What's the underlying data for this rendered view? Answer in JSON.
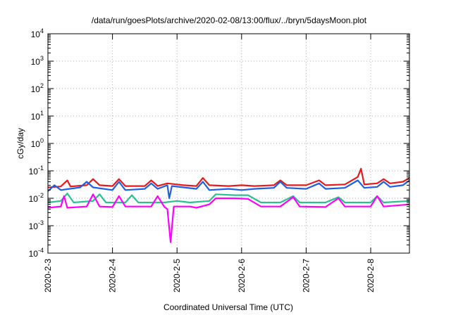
{
  "chart_data": {
    "type": "line",
    "title": "/data/run/goesPlots/archive/2020-02-08/13:00/flux/../bryn/5daysMoon.plot",
    "xlabel": "Coordinated Universal Time (UTC)",
    "ylabel": "cGy/day",
    "yscale": "log",
    "ylim": [
      0.0001,
      10000
    ],
    "xlim": [
      0,
      5.6
    ],
    "grid": true,
    "x_tick_values": [
      0,
      1,
      2,
      3,
      4,
      5
    ],
    "x_tick_labels": [
      "2020-2-3",
      "2020-2-4",
      "2020-2-5",
      "2020-2-6",
      "2020-2-7",
      "2020-2-8"
    ],
    "y_ticks": [
      {
        "value": 0.0001,
        "base": "10",
        "exp": "-4"
      },
      {
        "value": 0.001,
        "base": "10",
        "exp": "-3"
      },
      {
        "value": 0.01,
        "base": "10",
        "exp": "-2"
      },
      {
        "value": 0.1,
        "base": "10",
        "exp": "-1"
      },
      {
        "value": 1,
        "base": "10",
        "exp": "0"
      },
      {
        "value": 10,
        "base": "10",
        "exp": "1"
      },
      {
        "value": 100,
        "base": "10",
        "exp": "2"
      },
      {
        "value": 1000,
        "base": "10",
        "exp": "3"
      },
      {
        "value": 10000,
        "base": "10",
        "exp": "4"
      }
    ],
    "series": [
      {
        "color": "#e41a1c",
        "points": [
          [
            0,
            0.025
          ],
          [
            0.2,
            0.027
          ],
          [
            0.3,
            0.045
          ],
          [
            0.35,
            0.027
          ],
          [
            0.6,
            0.03
          ],
          [
            0.7,
            0.05
          ],
          [
            0.8,
            0.03
          ],
          [
            1.0,
            0.028
          ],
          [
            1.1,
            0.05
          ],
          [
            1.2,
            0.028
          ],
          [
            1.5,
            0.028
          ],
          [
            1.6,
            0.045
          ],
          [
            1.7,
            0.028
          ],
          [
            1.85,
            0.035
          ],
          [
            2.0,
            0.032
          ],
          [
            2.1,
            0.03
          ],
          [
            2.3,
            0.028
          ],
          [
            2.4,
            0.055
          ],
          [
            2.5,
            0.03
          ],
          [
            2.8,
            0.028
          ],
          [
            3.0,
            0.03
          ],
          [
            3.2,
            0.028
          ],
          [
            3.5,
            0.03
          ],
          [
            3.6,
            0.045
          ],
          [
            3.7,
            0.03
          ],
          [
            4.0,
            0.03
          ],
          [
            4.2,
            0.045
          ],
          [
            4.3,
            0.03
          ],
          [
            4.6,
            0.032
          ],
          [
            4.8,
            0.06
          ],
          [
            4.85,
            0.12
          ],
          [
            4.9,
            0.032
          ],
          [
            5.1,
            0.035
          ],
          [
            5.2,
            0.05
          ],
          [
            5.3,
            0.035
          ],
          [
            5.5,
            0.04
          ],
          [
            5.6,
            0.055
          ]
        ]
      },
      {
        "color": "#1f5fe0",
        "points": [
          [
            0,
            0.018
          ],
          [
            0.1,
            0.03
          ],
          [
            0.2,
            0.02
          ],
          [
            0.5,
            0.025
          ],
          [
            0.6,
            0.04
          ],
          [
            0.7,
            0.025
          ],
          [
            1.0,
            0.02
          ],
          [
            1.1,
            0.04
          ],
          [
            1.2,
            0.02
          ],
          [
            1.5,
            0.022
          ],
          [
            1.6,
            0.035
          ],
          [
            1.7,
            0.022
          ],
          [
            1.85,
            0.03
          ],
          [
            1.88,
            0.01
          ],
          [
            1.92,
            0.028
          ],
          [
            2.1,
            0.025
          ],
          [
            2.3,
            0.022
          ],
          [
            2.4,
            0.04
          ],
          [
            2.5,
            0.02
          ],
          [
            2.8,
            0.022
          ],
          [
            3.0,
            0.02
          ],
          [
            3.2,
            0.022
          ],
          [
            3.5,
            0.024
          ],
          [
            3.6,
            0.04
          ],
          [
            3.7,
            0.024
          ],
          [
            4.0,
            0.022
          ],
          [
            4.2,
            0.035
          ],
          [
            4.3,
            0.022
          ],
          [
            4.6,
            0.024
          ],
          [
            4.8,
            0.045
          ],
          [
            4.9,
            0.024
          ],
          [
            5.1,
            0.026
          ],
          [
            5.2,
            0.04
          ],
          [
            5.3,
            0.026
          ],
          [
            5.5,
            0.03
          ],
          [
            5.6,
            0.045
          ]
        ]
      },
      {
        "color": "#2cbf8f",
        "points": [
          [
            0,
            0.007
          ],
          [
            0.2,
            0.008
          ],
          [
            0.3,
            0.015
          ],
          [
            0.4,
            0.007
          ],
          [
            0.7,
            0.008
          ],
          [
            0.8,
            0.014
          ],
          [
            0.9,
            0.007
          ],
          [
            1.2,
            0.007
          ],
          [
            1.3,
            0.013
          ],
          [
            1.4,
            0.007
          ],
          [
            1.8,
            0.007
          ],
          [
            2.0,
            0.008
          ],
          [
            2.2,
            0.007
          ],
          [
            2.5,
            0.008
          ],
          [
            2.6,
            0.014
          ],
          [
            2.9,
            0.013
          ],
          [
            3.1,
            0.013
          ],
          [
            3.3,
            0.007
          ],
          [
            3.6,
            0.007
          ],
          [
            3.8,
            0.012
          ],
          [
            3.9,
            0.007
          ],
          [
            4.3,
            0.007
          ],
          [
            4.5,
            0.011
          ],
          [
            4.6,
            0.007
          ],
          [
            5.0,
            0.007
          ],
          [
            5.1,
            0.012
          ],
          [
            5.2,
            0.007
          ],
          [
            5.6,
            0.008
          ]
        ]
      },
      {
        "color": "#ff00ff",
        "points": [
          [
            0,
            0.0045
          ],
          [
            0.2,
            0.005
          ],
          [
            0.25,
            0.012
          ],
          [
            0.3,
            0.0045
          ],
          [
            0.6,
            0.005
          ],
          [
            0.7,
            0.014
          ],
          [
            0.8,
            0.005
          ],
          [
            1.0,
            0.0048
          ],
          [
            1.1,
            0.012
          ],
          [
            1.2,
            0.005
          ],
          [
            1.6,
            0.005
          ],
          [
            1.7,
            0.012
          ],
          [
            1.8,
            0.005
          ],
          [
            1.85,
            0.004
          ],
          [
            1.9,
            0.00025
          ],
          [
            1.95,
            0.005
          ],
          [
            2.2,
            0.005
          ],
          [
            2.3,
            0.0045
          ],
          [
            2.5,
            0.006
          ],
          [
            2.6,
            0.01
          ],
          [
            2.9,
            0.01
          ],
          [
            3.1,
            0.0095
          ],
          [
            3.3,
            0.005
          ],
          [
            3.6,
            0.005
          ],
          [
            3.8,
            0.011
          ],
          [
            3.9,
            0.005
          ],
          [
            4.3,
            0.0048
          ],
          [
            4.5,
            0.01
          ],
          [
            4.6,
            0.005
          ],
          [
            5.0,
            0.005
          ],
          [
            5.1,
            0.012
          ],
          [
            5.2,
            0.005
          ],
          [
            5.6,
            0.006
          ]
        ]
      }
    ]
  }
}
